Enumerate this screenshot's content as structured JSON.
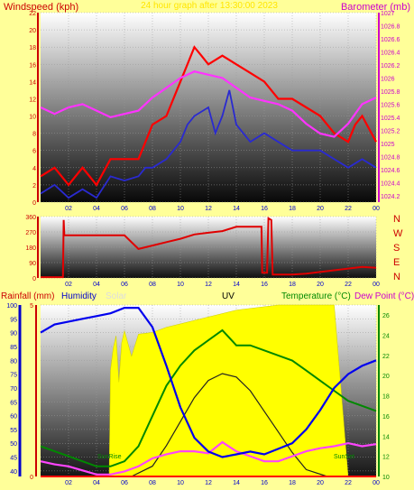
{
  "colors": {
    "background": "#ffff99",
    "wind": "#ff0000",
    "gust": "#2a2ad0",
    "barometer": "#ff33ff",
    "direction": "#e00000",
    "humidity": "#0000ee",
    "solar": "#ffff00",
    "uv": "#222222",
    "temperature": "#008800",
    "dewpoint": "#ff44ff",
    "rain": "#ff0000",
    "axis_blue": "#0000cc",
    "axis_green": "#008800",
    "axis_red": "#cc0000",
    "axis_magenta": "#cc00cc"
  },
  "header": {
    "windspeed": "Windspeed (kph)",
    "center": "24 hour graph after 13:30:00 2023",
    "barometer": "Barometer (mb)"
  },
  "labels": {
    "rainfall": "Rainfall (mm)",
    "humidity": "Humidity",
    "solar": "Solar",
    "uv": "UV",
    "temperature": "Temperature (°C)",
    "dewpoint": "Dew Point (°C)",
    "sunrise": "SunRise",
    "sunset": "SunSet"
  },
  "compass": [
    "N",
    "W",
    "S",
    "E",
    "N"
  ],
  "x_ticks": [
    "02",
    "04",
    "06",
    "08",
    "10",
    "12",
    "14",
    "16",
    "18",
    "20",
    "22",
    "00"
  ],
  "chart_data": [
    {
      "type": "line",
      "name": "wind-baro",
      "xlim": [
        0,
        24
      ],
      "y_left": {
        "label": "Windspeed (kph)",
        "lim": [
          0,
          22
        ],
        "ticks": [
          0,
          2,
          4,
          6,
          8,
          10,
          12,
          14,
          16,
          18,
          20,
          22
        ]
      },
      "y_right": {
        "label": "Barometer (mb)",
        "lim": [
          1024.1,
          1027
        ],
        "ticks": [
          "1024.2",
          "1024.4",
          "1024.6",
          "1024.8",
          "1025",
          "1025.2",
          "1025.4",
          "1025.6",
          "1025.8",
          "1026",
          "1026.2",
          "1026.4",
          "1026.6",
          "1026.8",
          "1027"
        ]
      },
      "series": [
        {
          "name": "Windspeed",
          "axis": "left",
          "x": [
            0,
            1,
            2,
            3,
            4,
            5,
            6,
            7,
            7.5,
            8,
            9,
            10,
            10.5,
            11,
            11.5,
            12,
            13,
            14,
            15,
            16,
            17,
            18,
            19,
            20,
            21,
            22,
            22.5,
            23,
            24
          ],
          "y": [
            3,
            4,
            2,
            4,
            2,
            5,
            5,
            5,
            7,
            9,
            10,
            14,
            16,
            18,
            17,
            16,
            17,
            16,
            15,
            14,
            12,
            12,
            11,
            10,
            8,
            7,
            9,
            10,
            7
          ]
        },
        {
          "name": "Gust",
          "axis": "left",
          "x": [
            0,
            1,
            2,
            3,
            4,
            5,
            6,
            7,
            7.5,
            8,
            9,
            10,
            10.5,
            11,
            12,
            12.5,
            13,
            13.5,
            14,
            15,
            16,
            17,
            18,
            19,
            20,
            21,
            22,
            23,
            24
          ],
          "y": [
            1,
            2,
            0.5,
            1.5,
            0.5,
            3,
            2.5,
            3,
            4,
            4,
            5,
            7,
            9,
            10,
            11,
            8,
            10,
            13,
            9,
            7,
            8,
            7,
            6,
            6,
            6,
            5,
            4,
            5,
            4
          ]
        },
        {
          "name": "Barometer",
          "axis": "right",
          "x": [
            0,
            1,
            2,
            3,
            4,
            5,
            6,
            7,
            8,
            9,
            10,
            11,
            12,
            13,
            14,
            15,
            16,
            17,
            18,
            19,
            20,
            21,
            22,
            23,
            24
          ],
          "y": [
            1025.55,
            1025.45,
            1025.55,
            1025.6,
            1025.5,
            1025.4,
            1025.45,
            1025.5,
            1025.7,
            1025.85,
            1026.0,
            1026.1,
            1026.05,
            1026.0,
            1025.85,
            1025.7,
            1025.65,
            1025.6,
            1025.5,
            1025.3,
            1025.15,
            1025.1,
            1025.3,
            1025.6,
            1025.7
          ]
        }
      ]
    },
    {
      "type": "line",
      "name": "direction",
      "xlim": [
        0,
        24
      ],
      "y_left": {
        "lim": [
          0,
          360
        ],
        "ticks": [
          0,
          90,
          180,
          270,
          360
        ]
      },
      "series": [
        {
          "name": "Wind direction",
          "x": [
            0,
            1.6,
            1.65,
            1.7,
            3,
            4,
            5,
            6,
            7,
            8,
            9,
            10,
            11,
            12,
            13,
            14,
            15,
            15.8,
            15.85,
            16.2,
            16.3,
            16.5,
            16.6,
            17,
            18,
            19,
            20,
            21,
            22,
            23,
            24
          ],
          "y": [
            5,
            5,
            340,
            250,
            250,
            250,
            250,
            250,
            170,
            190,
            210,
            230,
            255,
            265,
            275,
            300,
            300,
            300,
            30,
            30,
            350,
            340,
            20,
            20,
            20,
            25,
            35,
            45,
            55,
            65,
            60
          ]
        }
      ]
    },
    {
      "type": "line",
      "name": "rain-humidity-temp",
      "xlim": [
        0,
        24
      ],
      "y_humidity": {
        "label": "Humidity",
        "lim": [
          38,
          100
        ],
        "ticks": [
          40,
          45,
          50,
          55,
          60,
          65,
          70,
          75,
          80,
          85,
          90,
          95,
          100
        ]
      },
      "y_rain": {
        "label": "Rainfall (mm)",
        "lim": [
          0,
          5
        ],
        "ticks": [
          0,
          5
        ]
      },
      "y_temp": {
        "label": "Temperature (°C)",
        "lim": [
          10,
          27
        ],
        "ticks": [
          10,
          12,
          14,
          16,
          18,
          20,
          22,
          24,
          26
        ]
      },
      "y_solar": {
        "label": "Solar",
        "lim": [
          0,
          1
        ]
      },
      "series": [
        {
          "name": "Humidity",
          "axis": "humidity",
          "x": [
            0,
            1,
            2,
            3,
            4,
            5,
            6,
            7,
            8,
            9,
            10,
            11,
            12,
            13,
            14,
            15,
            16,
            17,
            18,
            19,
            20,
            21,
            22,
            23,
            24
          ],
          "y": [
            90,
            93,
            94,
            95,
            96,
            97,
            99,
            99,
            92,
            78,
            63,
            52,
            47,
            45,
            46,
            47,
            46,
            48,
            50,
            55,
            62,
            70,
            75,
            78,
            80
          ]
        },
        {
          "name": "Solar",
          "axis": "solar",
          "x": [
            4.9,
            5.0,
            5.2,
            5.4,
            5.6,
            5.8,
            6,
            6.5,
            7,
            8,
            9,
            10,
            11,
            12,
            13,
            14,
            15,
            16,
            17,
            18,
            19,
            20,
            21,
            22
          ],
          "y": [
            0,
            0.62,
            0.75,
            0.82,
            0.55,
            0.78,
            0.85,
            0.7,
            0.83,
            0.84,
            0.87,
            0.89,
            0.91,
            0.93,
            0.95,
            0.97,
            0.98,
            0.99,
            1.0,
            1.0,
            1.0,
            1.0,
            1.0,
            0
          ]
        },
        {
          "name": "UV",
          "axis": "rain",
          "x": [
            6.5,
            8,
            9,
            10,
            11,
            12,
            13,
            14,
            15,
            16,
            17,
            18,
            19,
            20.5
          ],
          "y": [
            0,
            0.3,
            0.9,
            1.6,
            2.3,
            2.8,
            3.0,
            2.9,
            2.5,
            1.9,
            1.3,
            0.7,
            0.2,
            0
          ]
        },
        {
          "name": "Temperature",
          "axis": "temp",
          "x": [
            0,
            1,
            2,
            3,
            4,
            5,
            6,
            7,
            8,
            9,
            10,
            11,
            12,
            13,
            14,
            15,
            16,
            17,
            18,
            19,
            20,
            21,
            22,
            23,
            24
          ],
          "y": [
            13,
            12.5,
            12,
            11.5,
            11,
            11,
            11.5,
            13,
            16,
            19,
            21,
            22.5,
            23.5,
            24.5,
            23,
            23,
            22.5,
            22,
            21.5,
            20.5,
            19.5,
            18.5,
            17.5,
            17,
            16.5
          ]
        },
        {
          "name": "Dew Point",
          "axis": "temp",
          "x": [
            0,
            1,
            2,
            3,
            4,
            5,
            6,
            7,
            8,
            9,
            10,
            11,
            12,
            13,
            14,
            15,
            16,
            17,
            18,
            19,
            20,
            21,
            22,
            23,
            24
          ],
          "y": [
            11.5,
            11.2,
            11,
            10.6,
            10.2,
            10.2,
            10.5,
            11,
            11.8,
            12.2,
            12.5,
            12.5,
            12.3,
            13.4,
            12.5,
            12,
            11.5,
            11.5,
            12,
            12.5,
            12.8,
            13,
            13.3,
            13,
            13.2
          ]
        },
        {
          "name": "Rainfall",
          "axis": "rain",
          "x": [
            0,
            24
          ],
          "y": [
            0,
            0
          ]
        }
      ]
    }
  ]
}
